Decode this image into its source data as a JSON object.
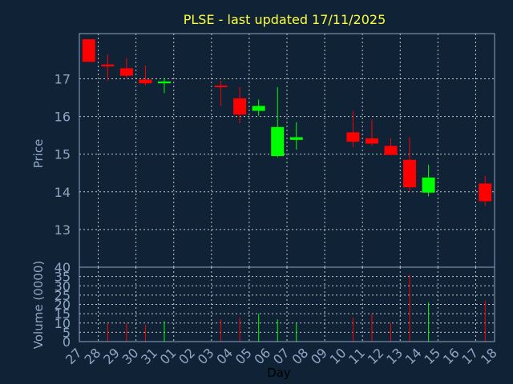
{
  "chart_data": {
    "type": "candlestick",
    "title": "PLSE - last updated 17/11/2025",
    "xlabel": "Day",
    "price_panel": {
      "ylabel": "Price",
      "yticks": [
        13,
        14,
        15,
        16,
        17
      ],
      "ylim": [
        12,
        18.2
      ]
    },
    "volume_panel": {
      "ylabel": "Volume (0000)",
      "yticks": [
        0,
        5,
        10,
        15,
        20,
        25,
        30,
        35,
        40
      ],
      "ylim": [
        0,
        40
      ]
    },
    "x_tick_labels": [
      "27",
      "28",
      "29",
      "30",
      "31",
      "01",
      "02",
      "03",
      "04",
      "05",
      "06",
      "07",
      "08",
      "09",
      "10",
      "11",
      "12",
      "13",
      "14",
      "15",
      "16",
      "17",
      "18"
    ],
    "colors": {
      "up": "#00ff00",
      "down": "#ff0000",
      "title": "#ffff3c",
      "axis": "#8ea6c4",
      "background": "#0f2236"
    },
    "candles": [
      {
        "x": "27",
        "open": 18.05,
        "high": 18.05,
        "low": 17.45,
        "close": 17.45,
        "volume": 0
      },
      {
        "x": "28",
        "open": 17.38,
        "high": 17.65,
        "low": 16.95,
        "close": 17.33,
        "volume": 10
      },
      {
        "x": "29",
        "open": 17.28,
        "high": 17.55,
        "low": 17.02,
        "close": 17.08,
        "volume": 10
      },
      {
        "x": "30",
        "open": 16.98,
        "high": 17.35,
        "low": 16.82,
        "close": 16.88,
        "volume": 9
      },
      {
        "x": "31",
        "open": 16.88,
        "high": 17.02,
        "low": 16.62,
        "close": 16.93,
        "volume": 11
      },
      {
        "x": "03",
        "open": 16.82,
        "high": 16.95,
        "low": 16.28,
        "close": 16.78,
        "volume": 12
      },
      {
        "x": "04",
        "open": 16.48,
        "high": 16.78,
        "low": 15.82,
        "close": 16.05,
        "volume": 13
      },
      {
        "x": "05",
        "open": 16.15,
        "high": 16.45,
        "low": 16.02,
        "close": 16.28,
        "volume": 15
      },
      {
        "x": "06",
        "open": 14.95,
        "high": 16.78,
        "low": 14.92,
        "close": 15.72,
        "volume": 12
      },
      {
        "x": "07",
        "open": 15.38,
        "high": 15.85,
        "low": 15.12,
        "close": 15.45,
        "volume": 10
      },
      {
        "x": "10",
        "open": 15.58,
        "high": 16.15,
        "low": 15.18,
        "close": 15.33,
        "volume": 13
      },
      {
        "x": "11",
        "open": 15.42,
        "high": 15.92,
        "low": 15.22,
        "close": 15.28,
        "volume": 15
      },
      {
        "x": "12",
        "open": 15.22,
        "high": 15.42,
        "low": 14.98,
        "close": 14.98,
        "volume": 10
      },
      {
        "x": "13",
        "open": 14.85,
        "high": 15.45,
        "low": 14.02,
        "close": 14.12,
        "volume": 36
      },
      {
        "x": "14",
        "open": 13.98,
        "high": 14.72,
        "low": 13.88,
        "close": 14.38,
        "volume": 21
      },
      {
        "x": "17",
        "open": 14.22,
        "high": 14.42,
        "low": 13.62,
        "close": 13.75,
        "volume": 22
      }
    ]
  }
}
